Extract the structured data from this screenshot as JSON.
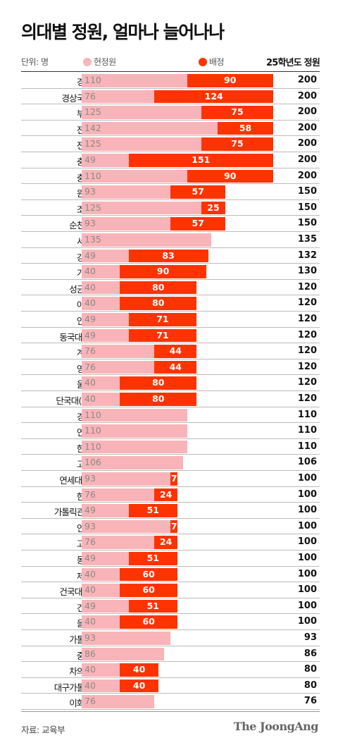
{
  "header": {
    "title": "의대별 정원, 얼마나 늘어나나",
    "unit": "단위: 명",
    "legend_current": "현정원",
    "legend_added": "배정",
    "total_label": "25학년도 정원"
  },
  "colors": {
    "current": "#f8b4b8",
    "added": "#ff3300"
  },
  "chart_data": {
    "type": "bar",
    "stacked": true,
    "orientation": "horizontal",
    "title": "의대별 정원, 얼마나 늘어나나",
    "unit": "단위: 명",
    "legend": [
      "현정원",
      "배정"
    ],
    "categories": [
      "경북대",
      "경상국립대",
      "부산대",
      "전북대",
      "전남대",
      "충북대",
      "충남대",
      "원광대",
      "조선대",
      "순천향대",
      "서울대",
      "강원대",
      "가천대",
      "성균관대",
      "아주대",
      "인하대",
      "동국대 분교",
      "계명대",
      "영남대",
      "울산대",
      "단국대(천안)",
      "경희대",
      "연세대",
      "한양대",
      "고려대",
      "연세대 분교",
      "한림대",
      "가톨릭관동대",
      "인제대",
      "고신대",
      "동아대",
      "제주대",
      "건국대 분교",
      "건양대",
      "을지대",
      "가톨릭대",
      "중앙대",
      "차의과대",
      "대구가톨릭대",
      "이화여대"
    ],
    "series": [
      {
        "name": "현정원",
        "values": [
          110,
          76,
          125,
          142,
          125,
          49,
          110,
          93,
          125,
          93,
          135,
          49,
          40,
          40,
          40,
          49,
          49,
          76,
          76,
          40,
          40,
          110,
          110,
          110,
          106,
          93,
          76,
          49,
          93,
          76,
          49,
          40,
          40,
          49,
          40,
          93,
          86,
          40,
          40,
          76
        ]
      },
      {
        "name": "배정",
        "values": [
          90,
          124,
          75,
          58,
          75,
          151,
          90,
          57,
          25,
          57,
          null,
          83,
          90,
          80,
          80,
          71,
          71,
          44,
          44,
          80,
          80,
          null,
          null,
          null,
          null,
          7,
          24,
          51,
          7,
          24,
          51,
          60,
          60,
          51,
          60,
          null,
          null,
          40,
          40,
          null
        ]
      }
    ],
    "totals_label": "25학년도 정원",
    "totals": [
      200,
      200,
      200,
      200,
      200,
      200,
      200,
      150,
      150,
      150,
      135,
      132,
      130,
      120,
      120,
      120,
      120,
      120,
      120,
      120,
      120,
      110,
      110,
      110,
      106,
      100,
      100,
      100,
      100,
      100,
      100,
      100,
      100,
      100,
      100,
      93,
      86,
      80,
      80,
      76
    ],
    "xlim": [
      0,
      200
    ]
  },
  "footer": {
    "source": "자료: 교육부",
    "logo": "The JoongAng"
  }
}
